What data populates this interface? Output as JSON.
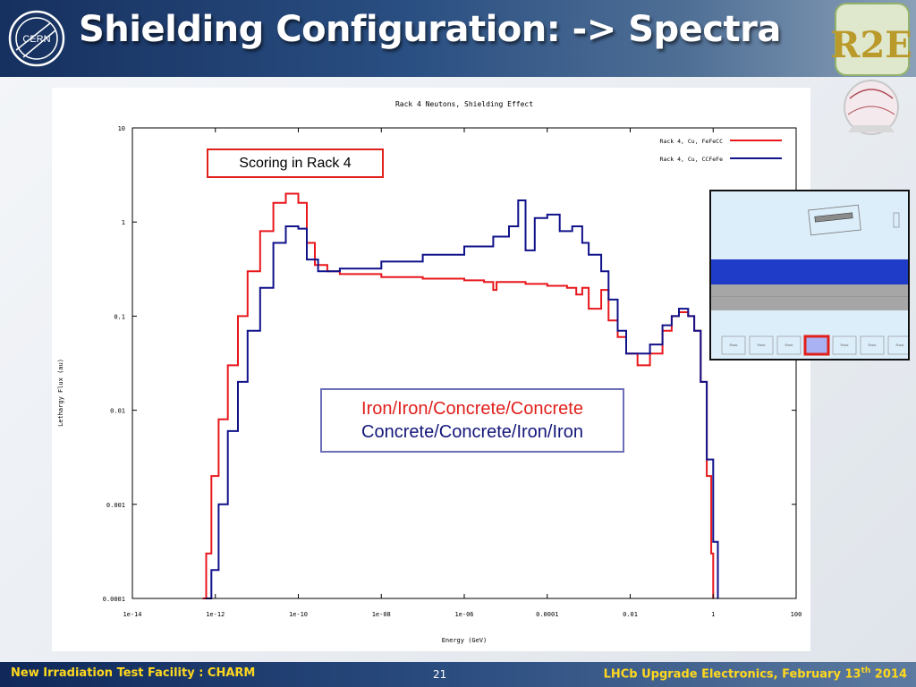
{
  "slide": {
    "title": "Shielding Configuration: -> Spectra",
    "logo_left_text": "CERN",
    "logo_right_text": "R2E"
  },
  "callouts": {
    "scoring": "Scoring in Rack 4",
    "config_red": "Iron/Iron/Concrete/Concrete",
    "config_blue": "Concrete/Concrete/Iron/Iron"
  },
  "footer": {
    "left": "New Irradiation Test Facility : CHARM",
    "page": "21",
    "right_prefix": "LHCb Upgrade Electronics, February 13",
    "right_sup": "th",
    "right_suffix": " 2014"
  },
  "colors": {
    "red_series": "#e8171c",
    "blue_series": "#10128a",
    "inset_blue_band": "#1f3cc9",
    "inset_grey_band": "#a6a6a6",
    "rack_highlight": "#e0201b",
    "rack_fill": "#a9b3f3"
  },
  "chart_data": {
    "type": "line",
    "title": "Rack 4 Neutons, Shielding Effect",
    "xlabel": "Energy (GeV)",
    "ylabel": "Lethargy Flux (au)",
    "x_scale": "log",
    "y_scale": "log",
    "xlim": [
      1e-14,
      100
    ],
    "ylim": [
      0.0001,
      10
    ],
    "x_ticks": [
      "1e-14",
      "1e-12",
      "1e-10",
      "1e-08",
      "1e-06",
      "0.0001",
      "0.01",
      "1",
      "100"
    ],
    "y_ticks": [
      "10",
      "1",
      "0.1",
      "0.01",
      "0.001",
      "0.0001"
    ],
    "legend_position": "top-right",
    "series": [
      {
        "name": "Rack 4, Cu, FeFeCC",
        "color": "#e8171c",
        "points": [
          [
            5e-13,
            0.0001
          ],
          [
            6e-13,
            0.0003
          ],
          [
            8e-13,
            0.002
          ],
          [
            1.2e-12,
            0.008
          ],
          [
            2e-12,
            0.03
          ],
          [
            3.5e-12,
            0.1
          ],
          [
            6e-12,
            0.3
          ],
          [
            1.2e-11,
            0.8
          ],
          [
            2.5e-11,
            1.6
          ],
          [
            5e-11,
            2.0
          ],
          [
            1e-10,
            1.6
          ],
          [
            1.6e-10,
            0.6
          ],
          [
            2.5e-10,
            0.35
          ],
          [
            5e-10,
            0.3
          ],
          [
            1e-09,
            0.28
          ],
          [
            1e-08,
            0.26
          ],
          [
            1e-07,
            0.25
          ],
          [
            1e-06,
            0.24
          ],
          [
            3e-06,
            0.23
          ],
          [
            5e-06,
            0.19
          ],
          [
            6e-06,
            0.23
          ],
          [
            3e-05,
            0.22
          ],
          [
            0.0001,
            0.21
          ],
          [
            0.0003,
            0.2
          ],
          [
            0.0005,
            0.17
          ],
          [
            0.0007,
            0.2
          ],
          [
            0.001,
            0.12
          ],
          [
            0.002,
            0.19
          ],
          [
            0.003,
            0.09
          ],
          [
            0.005,
            0.06
          ],
          [
            0.008,
            0.04
          ],
          [
            0.015,
            0.03
          ],
          [
            0.03,
            0.04
          ],
          [
            0.06,
            0.07
          ],
          [
            0.1,
            0.1
          ],
          [
            0.15,
            0.11
          ],
          [
            0.25,
            0.1
          ],
          [
            0.35,
            0.07
          ],
          [
            0.5,
            0.02
          ],
          [
            0.7,
            0.002
          ],
          [
            0.9,
            0.0003
          ],
          [
            1.0,
            0.0001
          ]
        ]
      },
      {
        "name": "Rack 4, Cu, CCFeFe",
        "color": "#10128a",
        "points": [
          [
            6e-13,
            0.0001
          ],
          [
            8e-13,
            0.0002
          ],
          [
            1.2e-12,
            0.001
          ],
          [
            2e-12,
            0.006
          ],
          [
            3.5e-12,
            0.02
          ],
          [
            6e-12,
            0.07
          ],
          [
            1.2e-11,
            0.2
          ],
          [
            2.5e-11,
            0.6
          ],
          [
            5e-11,
            0.9
          ],
          [
            1e-10,
            0.85
          ],
          [
            1.6e-10,
            0.4
          ],
          [
            3e-10,
            0.3
          ],
          [
            1e-09,
            0.32
          ],
          [
            1e-08,
            0.38
          ],
          [
            1e-07,
            0.45
          ],
          [
            1e-06,
            0.55
          ],
          [
            5e-06,
            0.7
          ],
          [
            1.2e-05,
            0.9
          ],
          [
            2e-05,
            1.7
          ],
          [
            3e-05,
            0.5
          ],
          [
            5e-05,
            1.1
          ],
          [
            0.0001,
            1.2
          ],
          [
            0.0002,
            0.8
          ],
          [
            0.0004,
            0.9
          ],
          [
            0.0007,
            0.6
          ],
          [
            0.001,
            0.45
          ],
          [
            0.002,
            0.3
          ],
          [
            0.003,
            0.15
          ],
          [
            0.005,
            0.07
          ],
          [
            0.008,
            0.04
          ],
          [
            0.015,
            0.04
          ],
          [
            0.03,
            0.05
          ],
          [
            0.06,
            0.08
          ],
          [
            0.1,
            0.1
          ],
          [
            0.15,
            0.12
          ],
          [
            0.25,
            0.1
          ],
          [
            0.35,
            0.07
          ],
          [
            0.5,
            0.02
          ],
          [
            0.7,
            0.003
          ],
          [
            1.0,
            0.0004
          ],
          [
            1.3,
            0.0001
          ]
        ]
      }
    ]
  },
  "inset": {
    "labels": [
      "Rack",
      "Rack",
      "Rack",
      "Rack",
      "Rack",
      "Rack",
      "Rack"
    ],
    "highlight_index": 3
  }
}
